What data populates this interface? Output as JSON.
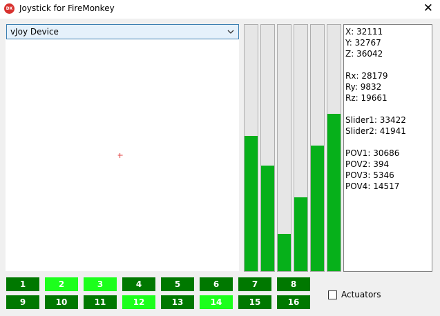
{
  "window": {
    "title": "Joystick for FireMonkey",
    "icon": "DX"
  },
  "device_select": "vJoy Device",
  "readout": [
    [
      {
        "name": "X:",
        "value": 32111
      },
      {
        "name": "Y:",
        "value": 32767
      },
      {
        "name": "Z:",
        "value": 36042
      }
    ],
    [
      {
        "name": "Rx:",
        "value": 28179
      },
      {
        "name": "Ry:",
        "value": 9832
      },
      {
        "name": "Rz:",
        "value": 19661
      }
    ],
    [
      {
        "name": "Slider1:",
        "value": 33422
      },
      {
        "name": "Slider2:",
        "value": 41941
      }
    ],
    [
      {
        "name": "POV1:",
        "value": 30686
      },
      {
        "name": "POV2:",
        "value": 394
      },
      {
        "name": "POV3:",
        "value": 5346
      },
      {
        "name": "POV4:",
        "value": 14517
      }
    ]
  ],
  "buttons": [
    {
      "label": "1",
      "pressed": false
    },
    {
      "label": "2",
      "pressed": true
    },
    {
      "label": "3",
      "pressed": true
    },
    {
      "label": "4",
      "pressed": false
    },
    {
      "label": "5",
      "pressed": false
    },
    {
      "label": "6",
      "pressed": false
    },
    {
      "label": "7",
      "pressed": false
    },
    {
      "label": "8",
      "pressed": false
    },
    {
      "label": "9",
      "pressed": false
    },
    {
      "label": "10",
      "pressed": false
    },
    {
      "label": "11",
      "pressed": false
    },
    {
      "label": "12",
      "pressed": true
    },
    {
      "label": "13",
      "pressed": false
    },
    {
      "label": "14",
      "pressed": true
    },
    {
      "label": "15",
      "pressed": false
    },
    {
      "label": "16",
      "pressed": false
    }
  ],
  "actuators": {
    "label": "Actuators",
    "checked": false
  }
}
